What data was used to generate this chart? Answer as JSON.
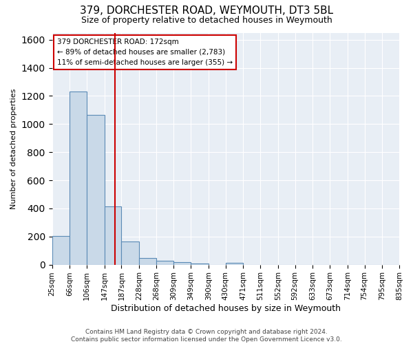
{
  "title1": "379, DORCHESTER ROAD, WEYMOUTH, DT3 5BL",
  "title2": "Size of property relative to detached houses in Weymouth",
  "xlabel": "Distribution of detached houses by size in Weymouth",
  "ylabel": "Number of detached properties",
  "bar_edges": [
    25,
    66,
    106,
    147,
    187,
    228,
    268,
    309,
    349,
    390,
    430,
    471,
    511,
    552,
    592,
    633,
    673,
    714,
    754,
    795,
    835
  ],
  "bar_labels": [
    "25sqm",
    "66sqm",
    "106sqm",
    "147sqm",
    "187sqm",
    "228sqm",
    "268sqm",
    "309sqm",
    "349sqm",
    "390sqm",
    "430sqm",
    "471sqm",
    "511sqm",
    "552sqm",
    "592sqm",
    "633sqm",
    "673sqm",
    "714sqm",
    "754sqm",
    "795sqm",
    "835sqm"
  ],
  "bar_heights": [
    205,
    1230,
    1065,
    415,
    165,
    47,
    27,
    20,
    10,
    0,
    15,
    0,
    0,
    0,
    0,
    0,
    0,
    0,
    0,
    0
  ],
  "bar_color": "#c9d9e8",
  "bar_edge_color": "#5a8ab5",
  "vline_x": 172,
  "vline_color": "#cc0000",
  "ylim": [
    0,
    1650
  ],
  "yticks": [
    0,
    200,
    400,
    600,
    800,
    1000,
    1200,
    1400,
    1600
  ],
  "annotation_line1": "379 DORCHESTER ROAD: 172sqm",
  "annotation_line2": "← 89% of detached houses are smaller (2,783)",
  "annotation_line3": "11% of semi-detached houses are larger (355) →",
  "annotation_box_color": "#ffffff",
  "annotation_box_edge": "#cc0000",
  "background_color": "#e8eef5",
  "footer_text": "Contains HM Land Registry data © Crown copyright and database right 2024.\nContains public sector information licensed under the Open Government Licence v3.0.",
  "fig_width": 6.0,
  "fig_height": 5.0,
  "title1_fontsize": 11,
  "title2_fontsize": 9,
  "ylabel_fontsize": 8,
  "xlabel_fontsize": 9,
  "tick_fontsize": 7.5,
  "annotation_fontsize": 7.5,
  "footer_fontsize": 6.5
}
